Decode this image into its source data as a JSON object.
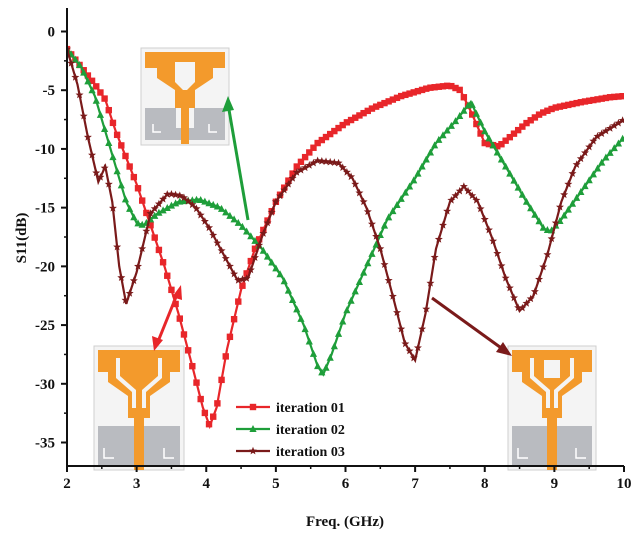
{
  "chart_data": {
    "type": "line",
    "title": "",
    "xlabel": "Freq. (GHz)",
    "ylabel": "S11(dB)",
    "xlim": [
      2,
      10
    ],
    "ylim": [
      -37,
      2
    ],
    "xticks": [
      "2",
      "3",
      "4",
      "5",
      "6",
      "7",
      "8",
      "9",
      "10"
    ],
    "yticks": [
      "0",
      "-5",
      "-10",
      "-15",
      "-20",
      "-25",
      "-30",
      "-35"
    ],
    "xtick_values": [
      2,
      3,
      4,
      5,
      6,
      7,
      8,
      9,
      10
    ],
    "ytick_values": [
      0,
      -5,
      -10,
      -15,
      -20,
      -25,
      -30,
      -35
    ],
    "legend_position": "bottom-center",
    "series": [
      {
        "name": "iteration 01",
        "color": "#e8262a",
        "marker": "square",
        "x": [
          2.0,
          2.2,
          2.4,
          2.55,
          2.7,
          2.8,
          2.9,
          3.0,
          3.2,
          3.4,
          3.6,
          3.8,
          3.95,
          4.05,
          4.15,
          4.3,
          4.5,
          4.7,
          5.0,
          5.3,
          5.6,
          6.0,
          6.4,
          6.8,
          7.2,
          7.5,
          7.65,
          7.8,
          8.0,
          8.2,
          8.4,
          8.6,
          8.8,
          9.0,
          9.4,
          9.8,
          10.0
        ],
        "y": [
          -1.5,
          -3.0,
          -4.5,
          -5.8,
          -8.5,
          -10.0,
          -11.5,
          -13.0,
          -16.5,
          -20.0,
          -24.0,
          -28.5,
          -32.0,
          -33.6,
          -32.0,
          -27.0,
          -22.0,
          -18.5,
          -14.5,
          -11.5,
          -9.5,
          -7.8,
          -6.5,
          -5.5,
          -4.8,
          -4.6,
          -5.0,
          -6.8,
          -9.5,
          -9.8,
          -8.8,
          -7.8,
          -7.0,
          -6.5,
          -6.0,
          -5.6,
          -5.5
        ]
      },
      {
        "name": "iteration 02",
        "color": "#1e9e3a",
        "marker": "triangle",
        "x": [
          2.0,
          2.2,
          2.4,
          2.55,
          2.7,
          2.85,
          3.0,
          3.1,
          3.3,
          3.6,
          3.9,
          4.2,
          4.5,
          4.8,
          5.1,
          5.4,
          5.6,
          5.68,
          5.8,
          6.0,
          6.3,
          6.6,
          7.0,
          7.3,
          7.6,
          7.8,
          8.0,
          8.3,
          8.6,
          8.85,
          8.95,
          9.1,
          9.4,
          9.7,
          10.0
        ],
        "y": [
          -1.5,
          -3.0,
          -5.5,
          -8.5,
          -11.5,
          -14.5,
          -16.3,
          -16.5,
          -15.5,
          -14.5,
          -14.3,
          -15.0,
          -16.5,
          -18.5,
          -21.0,
          -25.0,
          -28.5,
          -29.2,
          -27.5,
          -24.0,
          -20.0,
          -16.0,
          -12.5,
          -9.5,
          -7.5,
          -6.0,
          -8.5,
          -11.5,
          -14.5,
          -16.8,
          -17.0,
          -16.0,
          -13.5,
          -11.0,
          -9.0
        ]
      },
      {
        "name": "iteration 03",
        "color": "#7a1a1a",
        "marker": "star",
        "x": [
          2.0,
          2.15,
          2.3,
          2.45,
          2.55,
          2.65,
          2.75,
          2.85,
          3.0,
          3.2,
          3.45,
          3.65,
          3.85,
          4.05,
          4.25,
          4.45,
          4.6,
          4.8,
          5.0,
          5.3,
          5.6,
          5.9,
          6.1,
          6.3,
          6.5,
          6.7,
          6.85,
          7.0,
          7.15,
          7.3,
          7.5,
          7.7,
          7.9,
          8.1,
          8.3,
          8.5,
          8.7,
          8.9,
          9.1,
          9.3,
          9.6,
          10.0
        ],
        "y": [
          -1.5,
          -4.5,
          -9.0,
          -12.8,
          -11.5,
          -14.5,
          -20.0,
          -23.2,
          -20.5,
          -15.5,
          -13.8,
          -14.0,
          -15.0,
          -16.8,
          -19.0,
          -21.2,
          -21.0,
          -17.5,
          -14.5,
          -12.0,
          -11.0,
          -11.2,
          -12.5,
          -15.0,
          -18.5,
          -23.0,
          -26.5,
          -28.0,
          -24.0,
          -18.5,
          -14.5,
          -13.2,
          -14.5,
          -17.5,
          -21.0,
          -23.8,
          -22.5,
          -19.0,
          -14.5,
          -11.5,
          -9.0,
          -7.5
        ]
      }
    ]
  }
}
